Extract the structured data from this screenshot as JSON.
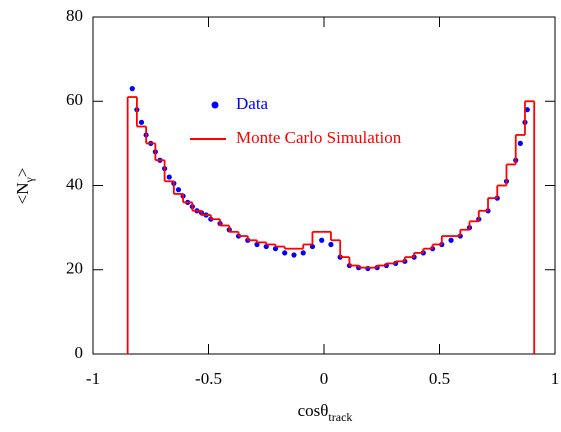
{
  "chart_data": {
    "type": "scatter-step",
    "xlabel": {
      "main": "cosθ",
      "sub": "track"
    },
    "ylabel": {
      "main": "<N",
      "sub": "γ",
      "end": ">"
    },
    "xlim": [
      -1,
      1
    ],
    "ylim": [
      0,
      80
    ],
    "xticks": [
      -1,
      -0.5,
      0,
      0.5,
      1
    ],
    "yticks": [
      0,
      20,
      40,
      60,
      80
    ],
    "series": [
      {
        "name": "Data",
        "color": "#0000ff",
        "kind": "points",
        "x": [
          -0.83,
          -0.81,
          -0.79,
          -0.77,
          -0.75,
          -0.73,
          -0.71,
          -0.69,
          -0.67,
          -0.65,
          -0.63,
          -0.61,
          -0.59,
          -0.57,
          -0.55,
          -0.53,
          -0.51,
          -0.49,
          -0.45,
          -0.41,
          -0.37,
          -0.33,
          -0.29,
          -0.25,
          -0.21,
          -0.17,
          -0.13,
          -0.09,
          -0.05,
          -0.01,
          0.03,
          0.07,
          0.11,
          0.15,
          0.19,
          0.23,
          0.27,
          0.31,
          0.35,
          0.39,
          0.43,
          0.47,
          0.51,
          0.55,
          0.59,
          0.63,
          0.67,
          0.71,
          0.75,
          0.79,
          0.83,
          0.85,
          0.87,
          0.88
        ],
        "values": [
          63,
          58,
          55,
          52,
          50,
          48,
          46,
          44,
          42,
          40.5,
          39,
          37.5,
          36,
          35,
          34,
          33.5,
          33,
          32,
          31,
          29.5,
          28,
          27,
          26,
          25.5,
          25,
          24,
          23.5,
          24,
          25.5,
          27,
          26,
          23,
          21,
          20.5,
          20.3,
          20.5,
          21,
          21.5,
          22,
          23,
          24,
          25,
          26,
          27,
          28,
          30,
          32,
          34,
          37,
          41,
          46,
          50,
          55,
          58
        ]
      },
      {
        "name": "Monte Carlo Simulation",
        "color": "#ff0000",
        "kind": "step",
        "bins": [
          -0.85,
          -0.81,
          -0.77,
          -0.73,
          -0.69,
          -0.65,
          -0.61,
          -0.57,
          -0.53,
          -0.49,
          -0.45,
          -0.41,
          -0.37,
          -0.33,
          -0.29,
          -0.25,
          -0.21,
          -0.17,
          -0.13,
          -0.09,
          -0.05,
          -0.01,
          0.03,
          0.07,
          0.11,
          0.15,
          0.19,
          0.23,
          0.27,
          0.31,
          0.35,
          0.39,
          0.43,
          0.47,
          0.51,
          0.55,
          0.59,
          0.63,
          0.67,
          0.71,
          0.75,
          0.79,
          0.83,
          0.87,
          0.91
        ],
        "values": [
          61,
          54,
          50,
          46,
          41,
          38,
          36,
          34,
          33,
          32,
          30.5,
          29,
          28,
          27,
          26.5,
          26,
          25.5,
          25,
          25,
          26,
          29,
          29,
          27,
          23,
          21,
          20.5,
          20.5,
          21,
          21.5,
          22,
          23,
          24,
          25,
          26,
          28,
          28,
          29.5,
          31.5,
          34,
          37,
          40,
          45,
          52,
          60
        ]
      }
    ]
  }
}
